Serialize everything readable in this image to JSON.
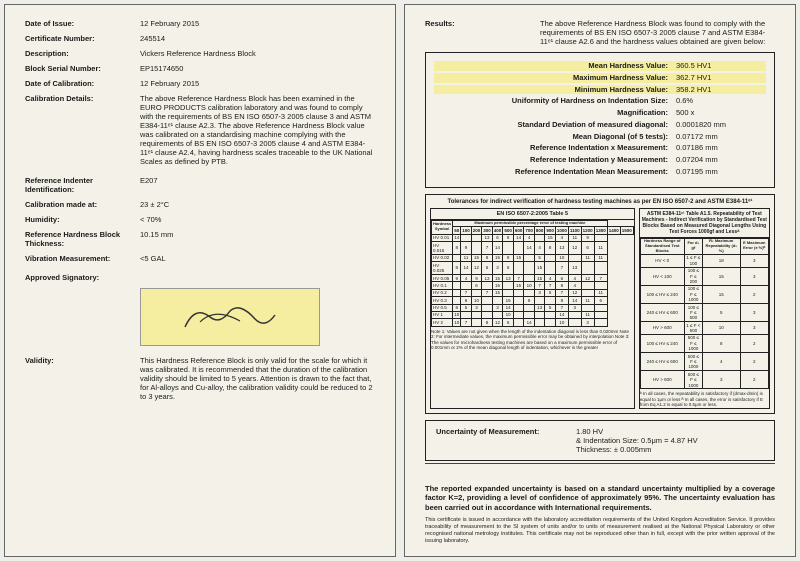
{
  "left": {
    "rows": [
      {
        "label": "Date of Issue:",
        "value": "12 February 2015"
      },
      {
        "label": "Certificate Number:",
        "value": "245514"
      },
      {
        "label": "Description:",
        "value": "Vickers Reference Hardness Block"
      },
      {
        "label": "Block Serial Number:",
        "value": "EP15174650"
      },
      {
        "label": "Date of Calibration:",
        "value": "12 February 2015"
      },
      {
        "label": "Calibration Details:",
        "value": "The above Reference Hardness Block has been examined in the EURO PRODUCTS calibration laboratory and was found to comply with the requirements of BS EN ISO 6507-3 2005 clause 3 and ASTM E384-11ᵉ¹ clause A2.3. The above Reference Hardness Block value was calibrated on a standardising machine complying with the requirements of BS EN ISO 6507-3 2005 clause 4 and ASTM E384-11ᵉ¹ clause A2.4, having hardness scales traceable to the UK National Scales as defined by PTB."
      },
      {
        "label": "Reference Indenter Identification:",
        "value": "E207"
      },
      {
        "label": "Calibration made at:",
        "value": "23 ± 2°C"
      },
      {
        "label": "Humidity:",
        "value": "< 70%"
      },
      {
        "label": "Reference Hardness Block Thickness:",
        "value": "10.15 mm"
      },
      {
        "label": "Vibration Measurement:",
        "value": "<5 GAL"
      },
      {
        "label": "Approved Signatory:",
        "value": ""
      }
    ],
    "validity": {
      "label": "Validity:",
      "value": "This Hardness Reference Block is only valid for the scale for which it was calibrated. It is recommended that the duration of the calibration validity should be limited to 5 years. Attention is drawn to the fact that, for Al-alloys and Cu-alloy, the calibration validity could be reduced to 2 to 3 years."
    }
  },
  "right": {
    "results_intro_label": "Results:",
    "results_intro": "The above Reference Hardness Block was found to comply with the requirements of BS EN ISO 6507-3 2005 clause 7 and ASTM E384-11ᵉ¹ clause A2.6 and the hardness values obtained are given below:",
    "highlighted": [
      {
        "label": "Mean Hardness Value:",
        "value": "360.5  HV1"
      },
      {
        "label": "Maximum Hardness Value:",
        "value": "362.7  HV1"
      },
      {
        "label": "Minimum Hardness Value:",
        "value": "358.2  HV1"
      }
    ],
    "measurements": [
      {
        "label": "Uniformity of Hardness on Indentation Size:",
        "value": "0.6%"
      },
      {
        "label": "Magnification:",
        "value": "500 x"
      },
      {
        "label": "Standard Deviation of measured diagonal:",
        "value": "0.0001820 mm"
      },
      {
        "label": "Mean Diagonal (of 5 tests):",
        "value": "0.07172 mm"
      },
      {
        "label": "Reference Indentation x Measurement:",
        "value": "0.07186 mm"
      },
      {
        "label": "Reference Indentation y Measurement:",
        "value": "0.07204 mm"
      },
      {
        "label": "Reference Indentation Mean Measurement:",
        "value": "0.07195 mm"
      }
    ],
    "tol_title": "Tolerances for indirect verification of hardness testing machines as per EN ISO 6507-2 and ASTM E384-11ᵉ¹",
    "tol_left_title": "EN ISO 6507-2:2005 Table 5",
    "tol_right_title": "ASTM E384-11ᵉ¹ Table A1.5. Repeatability of Test Machines - Indirect Verification by Standardised Test Blocks Based on Measured Diagonal Lengths Using Test Forces 1000gf and Lessᴬ",
    "tol_left_sub": "Maximum permissible percentage error of testing machine",
    "tol_left_rows": [
      "HV 0.01",
      "HV 0.015",
      "HV 0.02",
      "HV 0.025",
      "HV 0.05",
      "HV 0.1",
      "HV 0.2",
      "HV 0.3",
      "HV 0.5",
      "HV 1",
      "HV 2"
    ],
    "tol_right_th": [
      "Hardness Range of Standardised Test Blocks",
      "For d₁ gf",
      "R₁ Maximum Repeatability (d₁ %)",
      "E Maximum Error (± %)ᴮ"
    ],
    "tol_right_rows": [
      [
        "HV < 0",
        "1 ≤ F ≤ 100",
        "18",
        "3"
      ],
      [
        "HV < 100",
        "100 ≤ F ≤ 200",
        "15",
        "3"
      ],
      [
        "100 ≤ HV ≤ 240",
        "100 ≤ F ≤ 1000",
        "15",
        "2"
      ],
      [
        "240 ≤ HV ≤ 600",
        "100 ≤ F ≤ 500",
        "5",
        "3"
      ],
      [
        "HV > 600",
        "1 ≤ F < 500",
        "10",
        "3"
      ],
      [
        "100 ≤ HV ≤ 240",
        "500 ≤ F ≤ 1000",
        "8",
        "2"
      ],
      [
        "240 ≤ HV ≤ 600",
        "500 ≤ F ≤ 1000",
        "4",
        "2"
      ],
      [
        "HV > 600",
        "500 ≤ F ≤ 1000",
        "3",
        "2"
      ]
    ],
    "tol_notes_left": "Note 1: Values are not given when the length of the indentation diagonal is less than 0.020mm\nNote 2: For intermediate values, the maximum permissible error may be obtained by interpolation\nNote 3: The values for microhardness testing machines are based on a maximum permissible error of 0.001mm or 2% of the mean diagonal length of indentation, whichever is the greater",
    "tol_notes_right": "ᴬ In all cases, the repeatability is satisfactory if (dmax-dmin) is equal to 1μm or less\nᴮ In all cases, the error is satisfactory if E from Eq A1.2 is equal to 0.5μm or less.",
    "unc_label": "Uncertainty of Measurement:",
    "unc_lines": [
      "1.80 HV",
      "& Indentation Size: 0.5μm = 4.87 HV",
      "Thickness: ± 0.005mm"
    ],
    "footer_bold": "The reported expanded uncertainty is based on a standard uncertainty multiplied by a coverage factor K=2, providing a level of confidence of approximately 95%. The uncertainty evaluation has been carried out in accordance with International requirements.",
    "footer_small": "This certificate is issued in accordance with the laboratory accreditation requirements of the United Kingdom Accreditation Service. It provides traceability of measurement to the SI system of units and/or to units of measurement realised at the National Physical Laboratory or other recognised national metrology institutes. This certificate may not be reproduced other than in full, except with the prior written approval of the issuing laboratory."
  }
}
